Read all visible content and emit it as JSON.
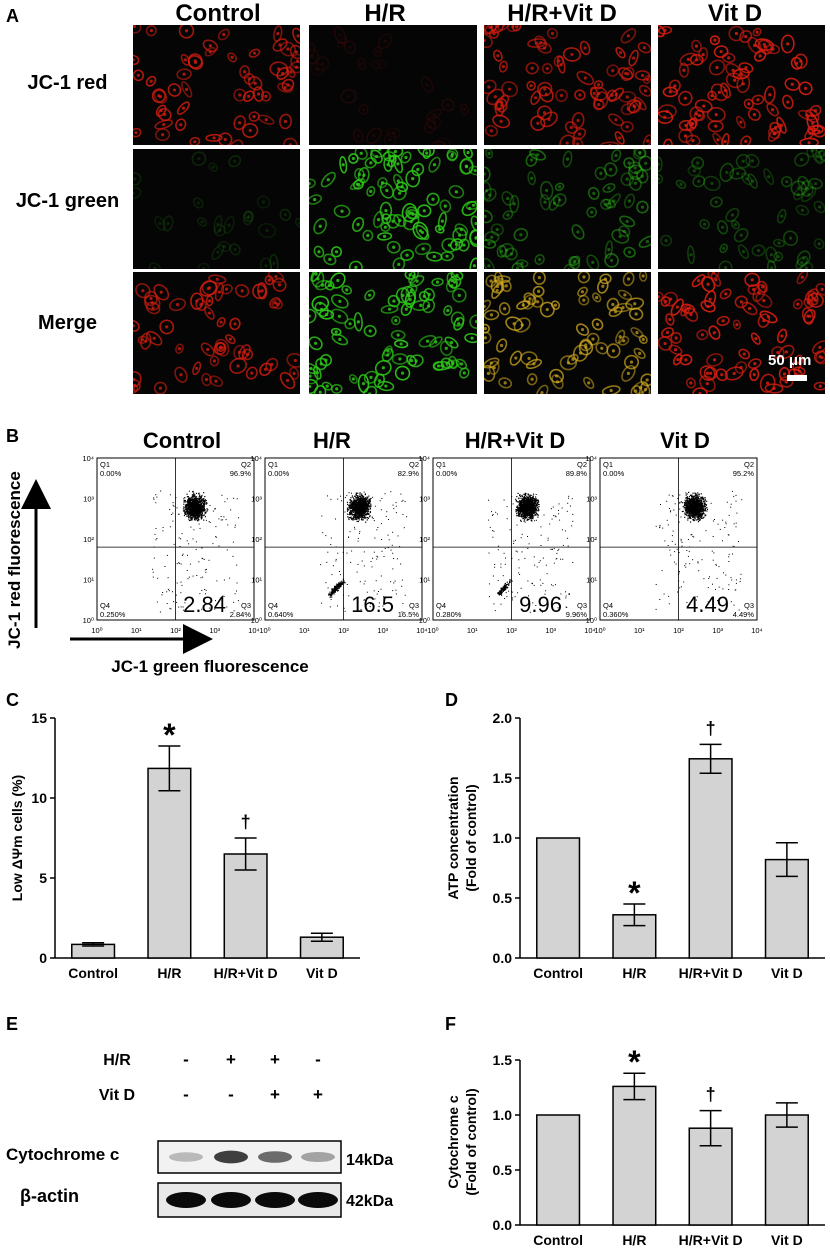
{
  "panelA": {
    "letter": "A",
    "columns": [
      "Control",
      "H/R",
      "H/R+Vit D",
      "Vit D"
    ],
    "rows": [
      "JC-1 red",
      "JC-1 green",
      "Merge"
    ],
    "scale_bar_label": "50 μm"
  },
  "panelB": {
    "letter": "B",
    "columns": [
      "Control",
      "H/R",
      "H/R+Vit D",
      "Vit D"
    ],
    "y_axis_label": "JC-1 red fluorescence",
    "x_axis_label": "JC-1 green fluorescence",
    "plots": [
      {
        "q1": "0.00%",
        "q2": "96.9%",
        "q4": "0.250%",
        "q3": "2.84%",
        "big": "2.84"
      },
      {
        "q1": "0.00%",
        "q2": "82.9%",
        "q4": "0.640%",
        "q3": "16.5%",
        "big": "16.5"
      },
      {
        "q1": "0.00%",
        "q2": "89.8%",
        "q4": "0.280%",
        "q3": "9.96%",
        "big": "9.96"
      },
      {
        "q1": "0.00%",
        "q2": "95.2%",
        "q4": "0.360%",
        "q3": "4.49%",
        "big": "4.49"
      }
    ],
    "quadrant_labels": [
      "Q1",
      "Q2",
      "Q3",
      "Q4"
    ]
  },
  "panelE": {
    "letter": "E",
    "rows": [
      {
        "label": "H/R",
        "signs": [
          "-",
          "+",
          "+",
          "-"
        ]
      },
      {
        "label": "Vit D",
        "signs": [
          "-",
          "-",
          "+",
          "+"
        ]
      }
    ],
    "bands": [
      {
        "label": "Cytochrome c",
        "size": "14kDa"
      },
      {
        "label": "β-actin",
        "size": "42kDa"
      }
    ]
  },
  "chart_data": [
    {
      "panel": "C",
      "type": "bar",
      "categories": [
        "Control",
        "H/R",
        "H/R+Vit D",
        "Vit D"
      ],
      "values": [
        0.85,
        11.85,
        6.5,
        1.3
      ],
      "errors": [
        0.1,
        1.4,
        1.0,
        0.25
      ],
      "annotations": [
        "",
        "*",
        "†",
        ""
      ],
      "ylabel": "Low ΔΨm cells (%)",
      "xlabel": "",
      "ylim": [
        0,
        15
      ],
      "yticks": [
        "0",
        "5",
        "10",
        "15"
      ]
    },
    {
      "panel": "D",
      "type": "bar",
      "categories": [
        "Control",
        "H/R",
        "H/R+Vit D",
        "Vit D"
      ],
      "values": [
        1.0,
        0.36,
        1.66,
        0.82
      ],
      "errors": [
        0,
        0.09,
        0.12,
        0.14
      ],
      "annotations": [
        "",
        "*",
        "†",
        ""
      ],
      "ylabel": [
        "ATP concentration",
        "(Fold of control)"
      ],
      "xlabel": "",
      "ylim": [
        0,
        2.0
      ],
      "yticks": [
        "0.0",
        "0.5",
        "1.0",
        "1.5",
        "2.0"
      ]
    },
    {
      "panel": "F",
      "type": "bar",
      "categories": [
        "Control",
        "H/R",
        "H/R+Vit D",
        "Vit D"
      ],
      "values": [
        1.0,
        1.26,
        0.88,
        1.0
      ],
      "errors": [
        0,
        0.12,
        0.16,
        0.11
      ],
      "annotations": [
        "",
        "*",
        "†",
        ""
      ],
      "ylabel": [
        "Cytochrome c",
        "(Fold of control)"
      ],
      "xlabel": "",
      "ylim": [
        0,
        1.5
      ],
      "yticks": [
        "0.0",
        "0.5",
        "1.0",
        "1.5"
      ]
    }
  ],
  "colors": {
    "bar_fill": "#d3d3d3",
    "red_stain": "#d81e10",
    "green_stain": "#2ec81a",
    "merge_yellow": "#d8b020"
  }
}
